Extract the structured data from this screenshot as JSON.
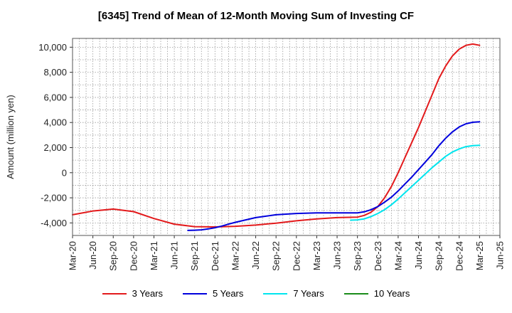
{
  "chart_data": {
    "type": "line",
    "title": "[6345]  Trend of Mean of 12-Month Moving Sum of Investing CF",
    "xlabel": "",
    "ylabel": "Amount (million yen)",
    "ylim": [
      -5000,
      10700
    ],
    "yticks": [
      10000,
      8000,
      6000,
      4000,
      2000,
      0,
      -2000,
      -4000
    ],
    "ytick_labels": [
      "10,000",
      "8,000",
      "6,000",
      "4,000",
      "2,000",
      "0",
      "-2,000",
      "-4,000"
    ],
    "xticks": [
      "2020-03",
      "2020-06",
      "2020-09",
      "2020-12",
      "2021-03",
      "2021-06",
      "2021-09",
      "2021-12",
      "2022-03",
      "2022-06",
      "2022-09",
      "2022-12",
      "2023-03",
      "2023-06",
      "2023-09",
      "2023-12",
      "2024-03",
      "2024-06",
      "2024-09",
      "2024-12",
      "2025-03",
      "2025-06"
    ],
    "xtick_labels": [
      "Mar-20",
      "Jun-20",
      "Sep-20",
      "Dec-20",
      "Mar-21",
      "Jun-21",
      "Sep-21",
      "Dec-21",
      "Mar-22",
      "Jun-22",
      "Sep-22",
      "Dec-22",
      "Mar-23",
      "Jun-23",
      "Sep-23",
      "Dec-23",
      "Mar-24",
      "Jun-24",
      "Sep-24",
      "Dec-24",
      "Mar-25",
      "Jun-25"
    ],
    "grid": true,
    "legend_position": "bottom",
    "series": [
      {
        "name": "3 Years",
        "color": "#e31a1c",
        "x": [
          "2020-03",
          "2020-06",
          "2020-09",
          "2020-12",
          "2021-03",
          "2021-06",
          "2021-09",
          "2021-12",
          "2022-03",
          "2022-06",
          "2022-09",
          "2022-12",
          "2023-03",
          "2023-06",
          "2023-09",
          "2023-10",
          "2023-11",
          "2023-12",
          "2024-01",
          "2024-02",
          "2024-03",
          "2024-04",
          "2024-05",
          "2024-06",
          "2024-07",
          "2024-08",
          "2024-09",
          "2024-10",
          "2024-11",
          "2024-12",
          "2025-01",
          "2025-02",
          "2025-03"
        ],
        "y": [
          -3350,
          -3050,
          -2900,
          -3100,
          -3650,
          -4100,
          -4300,
          -4320,
          -4270,
          -4170,
          -4020,
          -3830,
          -3680,
          -3580,
          -3540,
          -3400,
          -3150,
          -2700,
          -2000,
          -1100,
          0,
          1200,
          2400,
          3600,
          4900,
          6200,
          7500,
          8500,
          9300,
          9850,
          10150,
          10250,
          10150
        ]
      },
      {
        "name": "5 Years",
        "color": "#0000dd",
        "x": [
          "2021-08",
          "2021-09",
          "2021-10",
          "2021-11",
          "2021-12",
          "2022-01",
          "2022-02",
          "2022-03",
          "2022-06",
          "2022-09",
          "2022-12",
          "2023-03",
          "2023-06",
          "2023-09",
          "2023-10",
          "2023-11",
          "2023-12",
          "2024-01",
          "2024-02",
          "2024-03",
          "2024-04",
          "2024-05",
          "2024-06",
          "2024-07",
          "2024-08",
          "2024-09",
          "2024-10",
          "2024-11",
          "2024-12",
          "2025-01",
          "2025-02",
          "2025-03"
        ],
        "y": [
          -4600,
          -4580,
          -4550,
          -4480,
          -4380,
          -4250,
          -4100,
          -3950,
          -3580,
          -3350,
          -3250,
          -3200,
          -3200,
          -3200,
          -3120,
          -2950,
          -2700,
          -2350,
          -1950,
          -1450,
          -900,
          -350,
          250,
          850,
          1450,
          2150,
          2750,
          3250,
          3650,
          3900,
          4020,
          4050
        ]
      },
      {
        "name": "7 Years",
        "color": "#00e5ee",
        "x": [
          "2023-08",
          "2023-09",
          "2023-10",
          "2023-11",
          "2023-12",
          "2024-01",
          "2024-02",
          "2024-03",
          "2024-04",
          "2024-05",
          "2024-06",
          "2024-07",
          "2024-08",
          "2024-09",
          "2024-10",
          "2024-11",
          "2024-12",
          "2025-01",
          "2025-02",
          "2025-03"
        ],
        "y": [
          -3780,
          -3760,
          -3680,
          -3500,
          -3250,
          -2950,
          -2550,
          -2100,
          -1600,
          -1100,
          -600,
          -100,
          400,
          850,
          1300,
          1650,
          1900,
          2080,
          2160,
          2180
        ]
      },
      {
        "name": "10 Years",
        "color": "#1a8c1a",
        "x": [],
        "y": []
      }
    ]
  }
}
